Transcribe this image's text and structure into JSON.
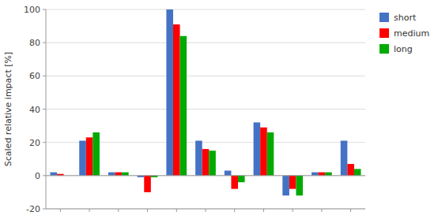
{
  "chart_data": {
    "type": "bar",
    "ylabel": "Scaled relative impact [%]",
    "categories": [
      null,
      null,
      null,
      null,
      null,
      null,
      null,
      null,
      null,
      null,
      null
    ],
    "series": [
      {
        "name": "short",
        "color": "#4472c4",
        "values": [
          2,
          21,
          2,
          -1,
          100,
          21,
          3,
          32,
          -12,
          2,
          21
        ]
      },
      {
        "name": "medium",
        "color": "#ff0000",
        "values": [
          1,
          23,
          2,
          -10,
          91,
          16,
          -8,
          29,
          -8,
          2,
          7
        ]
      },
      {
        "name": "long",
        "color": "#00aa00",
        "values": [
          0,
          26,
          2,
          -1,
          84,
          15,
          -4,
          26,
          -12,
          2,
          4
        ]
      }
    ],
    "ylim": [
      -20,
      100
    ],
    "yticks": [
      -20,
      0,
      20,
      40,
      60,
      80,
      100
    ],
    "grid": true,
    "legend": "right",
    "tick_labels": "y"
  }
}
